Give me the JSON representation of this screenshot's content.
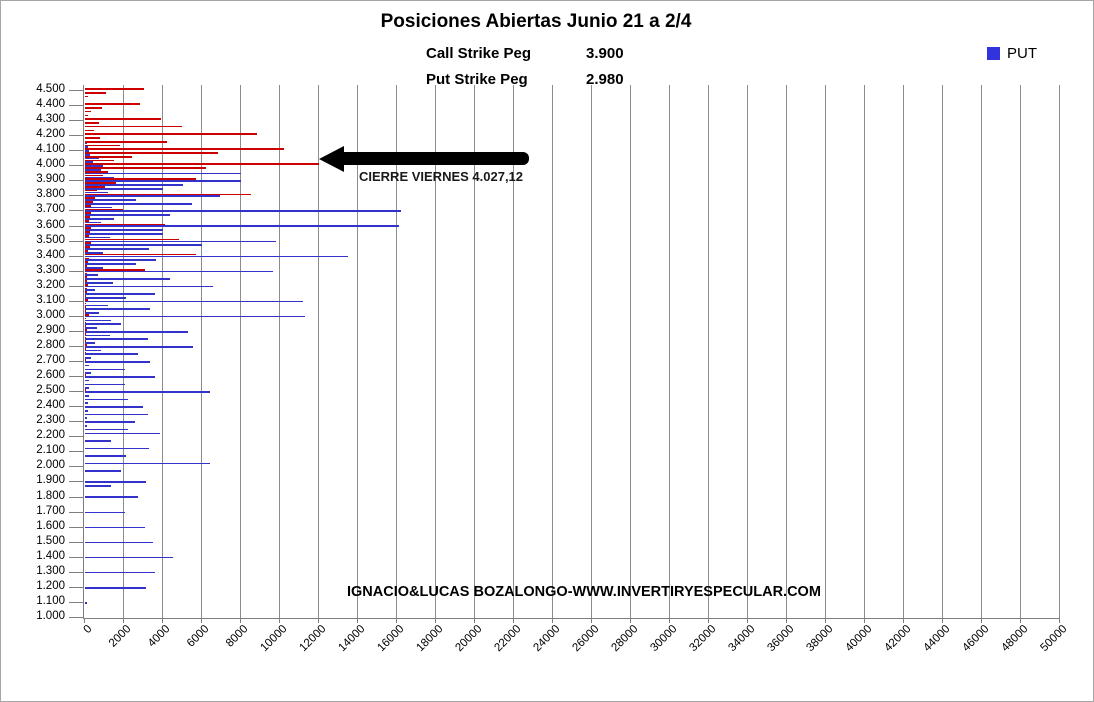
{
  "title": "Posiciones Abiertas Junio 21 a 2/4",
  "subtitle": {
    "call_label": "Call Strike Peg",
    "call_value": "3.900",
    "put_label": "Put Strike Peg",
    "put_value": "2.980"
  },
  "legend": {
    "items": [
      {
        "label": "PUT",
        "color": "#3333dd"
      }
    ],
    "position": "top-right"
  },
  "annotation": {
    "arrow_text": "CIERRE VIERNES 4.027,12",
    "arrow_direction": "left",
    "points_at_strike": "4.000"
  },
  "watermark": "IGNACIO&LUCAS BOZALONGO-WWW.INVERTIRYESPECULAR.COM",
  "chart_data": {
    "type": "bar",
    "orientation": "horizontal",
    "title": "Posiciones Abiertas Junio 21 a 2/4",
    "grid": "vertical-on",
    "colors": {
      "call": "#cc0000",
      "put": "#3333cc"
    },
    "x_axis": {
      "min": 0,
      "max": 50000,
      "step": 2000,
      "tick_labels": [
        "0",
        "2000",
        "4000",
        "6000",
        "8000",
        "10000",
        "12000",
        "14000",
        "16000",
        "18000",
        "20000",
        "22000",
        "24000",
        "26000",
        "28000",
        "30000",
        "32000",
        "34000",
        "36000",
        "38000",
        "40000",
        "42000",
        "44000",
        "46000",
        "48000",
        "50000"
      ]
    },
    "y_axis": {
      "min_strike": 1000,
      "max_strike": 4500,
      "label_step": 100,
      "bar_step": 25,
      "tick_labels": [
        "4.500",
        "4.400",
        "4.300",
        "4.200",
        "4.100",
        "4.000",
        "3.900",
        "3.800",
        "3.700",
        "3.600",
        "3.500",
        "3.400",
        "3.300",
        "3.200",
        "3.100",
        "3.000",
        "2.900",
        "2.800",
        "2.700",
        "2.600",
        "2.500",
        "2.400",
        "2.300",
        "2.200",
        "2.100",
        "2.000",
        "1.900",
        "1.800",
        "1.700",
        "1.600",
        "1.500",
        "1.400",
        "1.300",
        "1.200",
        "1.100",
        "1.000"
      ]
    },
    "series_fields": [
      "strike",
      "call_open_interest",
      "put_open_interest"
    ],
    "rows": [
      [
        4500,
        3000,
        0
      ],
      [
        4475,
        1100,
        0
      ],
      [
        4450,
        150,
        0
      ],
      [
        4425,
        0,
        0
      ],
      [
        4400,
        2800,
        0
      ],
      [
        4375,
        850,
        0
      ],
      [
        4350,
        300,
        0
      ],
      [
        4325,
        150,
        0
      ],
      [
        4300,
        3900,
        0
      ],
      [
        4275,
        700,
        0
      ],
      [
        4250,
        4950,
        0
      ],
      [
        4225,
        450,
        0
      ],
      [
        4200,
        8800,
        0
      ],
      [
        4175,
        750,
        0
      ],
      [
        4150,
        4200,
        100
      ],
      [
        4125,
        1800,
        150
      ],
      [
        4100,
        10200,
        200
      ],
      [
        4075,
        6800,
        250
      ],
      [
        4050,
        2400,
        700
      ],
      [
        4025,
        1500,
        400
      ],
      [
        4000,
        12000,
        900
      ],
      [
        3975,
        6200,
        800
      ],
      [
        3950,
        1200,
        8000
      ],
      [
        3925,
        900,
        1500
      ],
      [
        3900,
        5700,
        8000
      ],
      [
        3875,
        1600,
        5000
      ],
      [
        3850,
        1000,
        4000
      ],
      [
        3825,
        600,
        1200
      ],
      [
        3800,
        8500,
        6900
      ],
      [
        3775,
        500,
        2600
      ],
      [
        3750,
        400,
        5500
      ],
      [
        3725,
        300,
        1400
      ],
      [
        3700,
        1950,
        16200
      ],
      [
        3675,
        300,
        4350
      ],
      [
        3650,
        250,
        1500
      ],
      [
        3625,
        200,
        800
      ],
      [
        3600,
        4100,
        16100
      ],
      [
        3575,
        300,
        4000
      ],
      [
        3550,
        250,
        4000
      ],
      [
        3525,
        200,
        1300
      ],
      [
        3500,
        4800,
        9800
      ],
      [
        3475,
        300,
        6000
      ],
      [
        3450,
        250,
        3300
      ],
      [
        3425,
        150,
        900
      ],
      [
        3400,
        5700,
        13500
      ],
      [
        3375,
        200,
        3650
      ],
      [
        3350,
        150,
        2600
      ],
      [
        3325,
        100,
        900
      ],
      [
        3300,
        3100,
        9650
      ],
      [
        3275,
        100,
        660
      ],
      [
        3250,
        100,
        4350
      ],
      [
        3225,
        80,
        1430
      ],
      [
        3200,
        150,
        6560
      ],
      [
        3175,
        80,
        500
      ],
      [
        3150,
        80,
        3570
      ],
      [
        3125,
        60,
        2100
      ],
      [
        3100,
        150,
        11200
      ],
      [
        3075,
        60,
        1180
      ],
      [
        3050,
        60,
        3330
      ],
      [
        3025,
        50,
        700
      ],
      [
        3000,
        200,
        11300
      ],
      [
        2975,
        50,
        1330
      ],
      [
        2950,
        50,
        1850
      ],
      [
        2925,
        40,
        600
      ],
      [
        2900,
        100,
        5280
      ],
      [
        2875,
        40,
        1280
      ],
      [
        2850,
        40,
        3230
      ],
      [
        2825,
        30,
        500
      ],
      [
        2800,
        100,
        5540
      ],
      [
        2775,
        30,
        820
      ],
      [
        2750,
        30,
        2720
      ],
      [
        2725,
        0,
        300
      ],
      [
        2700,
        50,
        3340
      ],
      [
        2675,
        0,
        200
      ],
      [
        2650,
        0,
        2050
      ],
      [
        2625,
        0,
        300
      ],
      [
        2600,
        50,
        3580
      ],
      [
        2575,
        0,
        200
      ],
      [
        2550,
        0,
        2050
      ],
      [
        2525,
        0,
        200
      ],
      [
        2500,
        50,
        6400
      ],
      [
        2475,
        0,
        200
      ],
      [
        2450,
        0,
        2210
      ],
      [
        2425,
        0,
        150
      ],
      [
        2400,
        0,
        2980
      ],
      [
        2375,
        0,
        150
      ],
      [
        2350,
        0,
        3230
      ],
      [
        2325,
        0,
        100
      ],
      [
        2300,
        0,
        2550
      ],
      [
        2275,
        0,
        100
      ],
      [
        2250,
        0,
        2210
      ],
      [
        2225,
        0,
        3830
      ],
      [
        2200,
        0,
        0
      ],
      [
        2175,
        0,
        1330
      ],
      [
        2150,
        0,
        0
      ],
      [
        2125,
        0,
        3280
      ],
      [
        2100,
        0,
        0
      ],
      [
        2075,
        0,
        2100
      ],
      [
        2050,
        0,
        0
      ],
      [
        2025,
        0,
        6400
      ],
      [
        2000,
        0,
        0
      ],
      [
        1975,
        0,
        1850
      ],
      [
        1950,
        0,
        0
      ],
      [
        1925,
        0,
        0
      ],
      [
        1900,
        0,
        3130
      ],
      [
        1875,
        0,
        1330
      ],
      [
        1850,
        0,
        0
      ],
      [
        1825,
        0,
        0
      ],
      [
        1800,
        0,
        2720
      ],
      [
        1775,
        0,
        0
      ],
      [
        1750,
        0,
        0
      ],
      [
        1725,
        0,
        0
      ],
      [
        1700,
        0,
        2050
      ],
      [
        1675,
        0,
        0
      ],
      [
        1650,
        0,
        0
      ],
      [
        1625,
        0,
        0
      ],
      [
        1600,
        0,
        3070
      ],
      [
        1575,
        0,
        0
      ],
      [
        1550,
        0,
        0
      ],
      [
        1525,
        0,
        0
      ],
      [
        1500,
        0,
        3480
      ],
      [
        1475,
        0,
        0
      ],
      [
        1450,
        0,
        0
      ],
      [
        1425,
        0,
        0
      ],
      [
        1400,
        0,
        4500
      ],
      [
        1375,
        0,
        0
      ],
      [
        1350,
        0,
        0
      ],
      [
        1325,
        0,
        0
      ],
      [
        1300,
        0,
        3580
      ],
      [
        1275,
        0,
        0
      ],
      [
        1250,
        0,
        0
      ],
      [
        1225,
        0,
        0
      ],
      [
        1200,
        0,
        3130
      ],
      [
        1175,
        0,
        0
      ],
      [
        1150,
        0,
        0
      ],
      [
        1125,
        0,
        0
      ],
      [
        1100,
        0,
        80
      ],
      [
        1075,
        0,
        0
      ],
      [
        1050,
        0,
        0
      ],
      [
        1025,
        0,
        0
      ],
      [
        1000,
        0,
        0
      ]
    ]
  }
}
